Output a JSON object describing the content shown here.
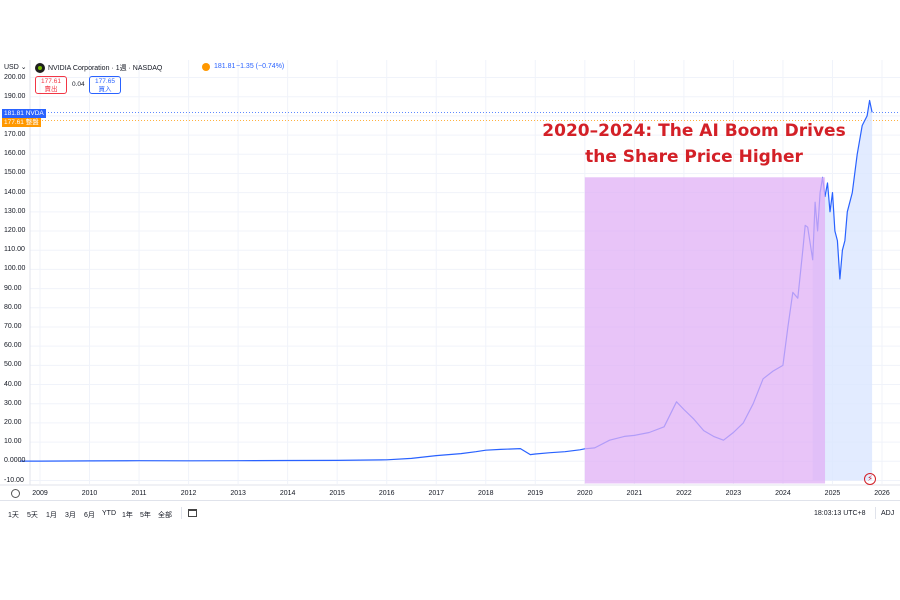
{
  "header": {
    "currency": "USD",
    "currency_arrow": "⌄",
    "symbol_line": "NVIDIA Corporation · 1週 · NASDAQ",
    "last": "181.81",
    "change": "−1.35 (−0.74%)",
    "sell_price": "177.61",
    "sell_label": "賣出",
    "spread": "0.04",
    "buy_price": "177.65",
    "buy_label": "買入"
  },
  "price_tags": {
    "last_value": "181.81",
    "last_symbol": "NVDA",
    "second_value": "177.61",
    "second_label": "整盤"
  },
  "annotation": {
    "line1": "2020–2024: The AI Boom Drives",
    "line2": "the Share Price Higher"
  },
  "bottom_bar": {
    "ranges": [
      "1天",
      "5天",
      "1月",
      "3月",
      "6月",
      "YTD",
      "1年",
      "5年",
      "全部"
    ],
    "clock": "18:03:13 UTC+8",
    "adj": "ADJ"
  },
  "colors": {
    "line": "#2962ff",
    "highlight": "#e0b0f5",
    "annotation": "#d32027",
    "up_tag": "#2962ff",
    "down_tag": "#ff9800"
  },
  "icons": [
    "nvidia-logo-icon",
    "market-status-icon",
    "settings-icon",
    "calendar-icon",
    "lightning-icon"
  ],
  "chart_data": {
    "type": "line",
    "title": "",
    "xlabel": "",
    "ylabel": "",
    "ylim": [
      -10,
      200
    ],
    "yticks": [
      "200.00",
      "190.00",
      "180.00",
      "170.00",
      "160.00",
      "150.00",
      "140.00",
      "130.00",
      "120.00",
      "110.00",
      "100.00",
      "90.00",
      "80.00",
      "70.00",
      "60.00",
      "50.00",
      "40.00",
      "30.00",
      "20.00",
      "10.00",
      "0.0000",
      "-10.00"
    ],
    "xticks": [
      "2009",
      "2010",
      "2011",
      "2012",
      "2013",
      "2014",
      "2015",
      "2016",
      "2017",
      "2018",
      "2019",
      "2020",
      "2021",
      "2022",
      "2023",
      "2024",
      "2025",
      "2026"
    ],
    "highlight_range": {
      "x_start": 2020.0,
      "x_end": 2024.85,
      "y_top": 148
    },
    "series": [
      {
        "x": [
          2008.6,
          2009.0,
          2010.0,
          2011.0,
          2012.0,
          2013.0,
          2014.0,
          2015.0,
          2016.0,
          2016.5,
          2017.0,
          2017.5,
          2017.8,
          2018.0,
          2018.3,
          2018.7,
          2018.9,
          2019.0,
          2019.3,
          2019.6,
          2019.9,
          2020.0,
          2020.2,
          2020.5,
          2020.8,
          2021.0,
          2021.3,
          2021.6,
          2021.85,
          2022.0,
          2022.2,
          2022.4,
          2022.6,
          2022.8,
          2023.0,
          2023.2,
          2023.4,
          2023.6,
          2023.8,
          2024.0,
          2024.1,
          2024.2,
          2024.3,
          2024.4,
          2024.45,
          2024.5,
          2024.6,
          2024.65,
          2024.7,
          2024.75,
          2024.8,
          2024.85,
          2024.9,
          2024.95,
          2025.0,
          2025.05,
          2025.1,
          2025.15,
          2025.2,
          2025.25,
          2025.3,
          2025.4,
          2025.5,
          2025.6,
          2025.7,
          2025.75,
          2025.8
        ],
        "y": [
          0.1,
          0.1,
          0.2,
          0.3,
          0.25,
          0.3,
          0.4,
          0.5,
          0.8,
          1.5,
          3.0,
          4.0,
          5.0,
          5.8,
          6.2,
          6.6,
          3.5,
          3.8,
          4.5,
          5.0,
          6.0,
          6.5,
          7.0,
          11.0,
          13.0,
          13.5,
          15.0,
          18.0,
          31.0,
          27.0,
          22.0,
          16.0,
          13.0,
          11.0,
          15.0,
          20.0,
          30.0,
          43.0,
          47.0,
          50.0,
          70.0,
          88.0,
          85.0,
          110.0,
          123.0,
          122.0,
          105.0,
          135.0,
          120.0,
          140.0,
          148.0,
          138.0,
          145.0,
          130.0,
          140.0,
          120.0,
          115.0,
          95.0,
          110.0,
          115.0,
          130.0,
          140.0,
          160.0,
          175.0,
          180.0,
          188.0,
          181.81
        ]
      }
    ]
  }
}
